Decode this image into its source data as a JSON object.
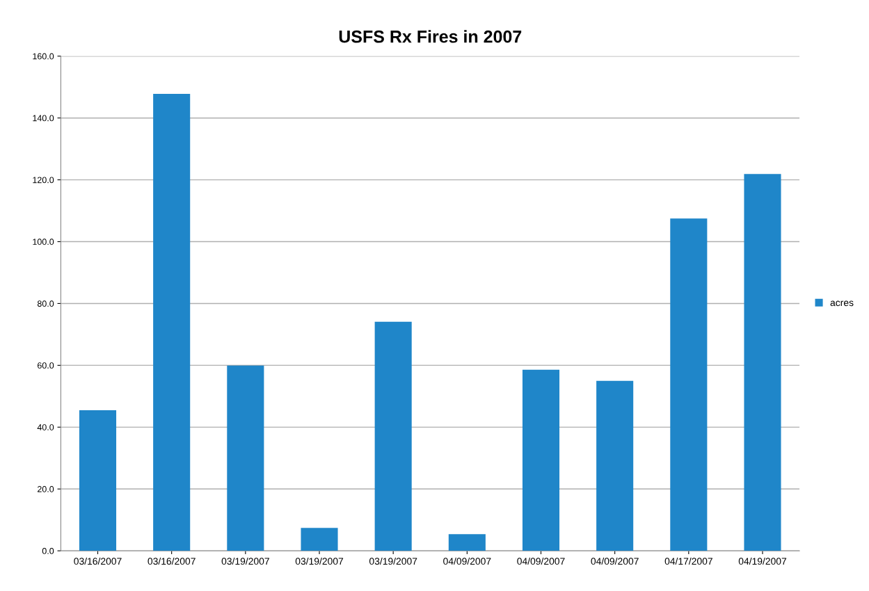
{
  "chart_data": {
    "type": "bar",
    "title": "USFS Rx Fires in 2007",
    "categories": [
      "03/16/2007",
      "03/16/2007",
      "03/19/2007",
      "03/19/2007",
      "03/19/2007",
      "04/09/2007",
      "04/09/2007",
      "04/09/2007",
      "04/17/2007",
      "04/19/2007"
    ],
    "series": [
      {
        "name": "acres",
        "color": "#1f86c9",
        "values": [
          45.5,
          147.8,
          59.9,
          7.4,
          74.1,
          5.4,
          58.6,
          55.0,
          107.5,
          121.9
        ]
      }
    ],
    "ylim": [
      0,
      160
    ],
    "yticks": [
      {
        "value": 0,
        "label": "0.0"
      },
      {
        "value": 20,
        "label": "20.0"
      },
      {
        "value": 40,
        "label": "40.0"
      },
      {
        "value": 60,
        "label": "60.0"
      },
      {
        "value": 80,
        "label": "80.0"
      },
      {
        "value": 100,
        "label": "100.0"
      },
      {
        "value": 120,
        "label": "120.0"
      },
      {
        "value": 140,
        "label": "140.0"
      },
      {
        "value": 160,
        "label": "160.0"
      }
    ],
    "grid": "y",
    "legend": "right"
  }
}
